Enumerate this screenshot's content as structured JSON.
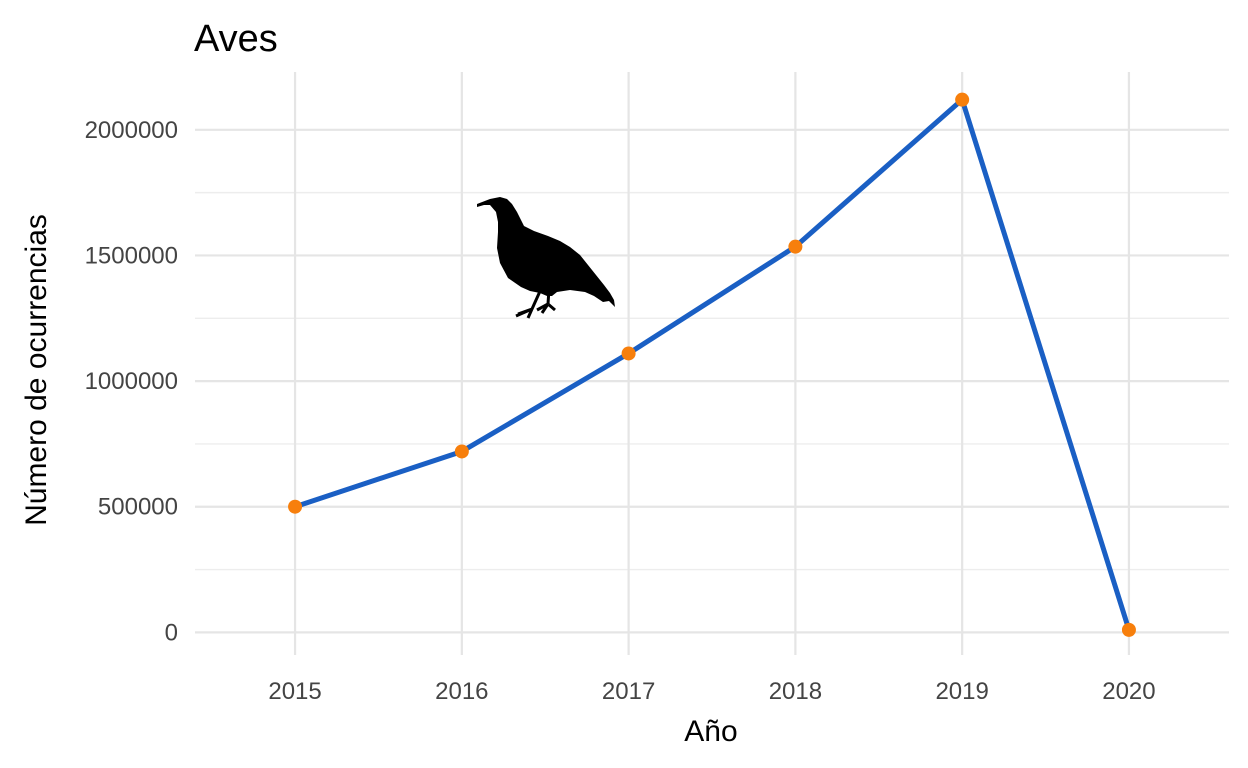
{
  "chart_data": {
    "type": "line",
    "title": "Aves",
    "xlabel": "Año",
    "ylabel": "Número de ocurrencias",
    "x": [
      2015,
      2016,
      2017,
      2018,
      2019,
      2020
    ],
    "series": [
      {
        "values": [
          500000,
          720000,
          1110000,
          1535000,
          2120000,
          10000
        ]
      }
    ],
    "x_ticks": [
      "2015",
      "2016",
      "2017",
      "2018",
      "2019",
      "2020"
    ],
    "y_ticks": [
      0,
      500000,
      1000000,
      1500000,
      2000000
    ],
    "y_tick_labels": [
      "0",
      "500000",
      "1000000",
      "1500000",
      "2000000"
    ],
    "xlim": [
      2014.4,
      2020.6
    ],
    "ylim": [
      -90000,
      2230000
    ],
    "grid": true,
    "legend": "none",
    "line_color": "#1a5fc4",
    "point_color": "#f77f0c",
    "decoration_icon": "bird-silhouette-icon"
  }
}
